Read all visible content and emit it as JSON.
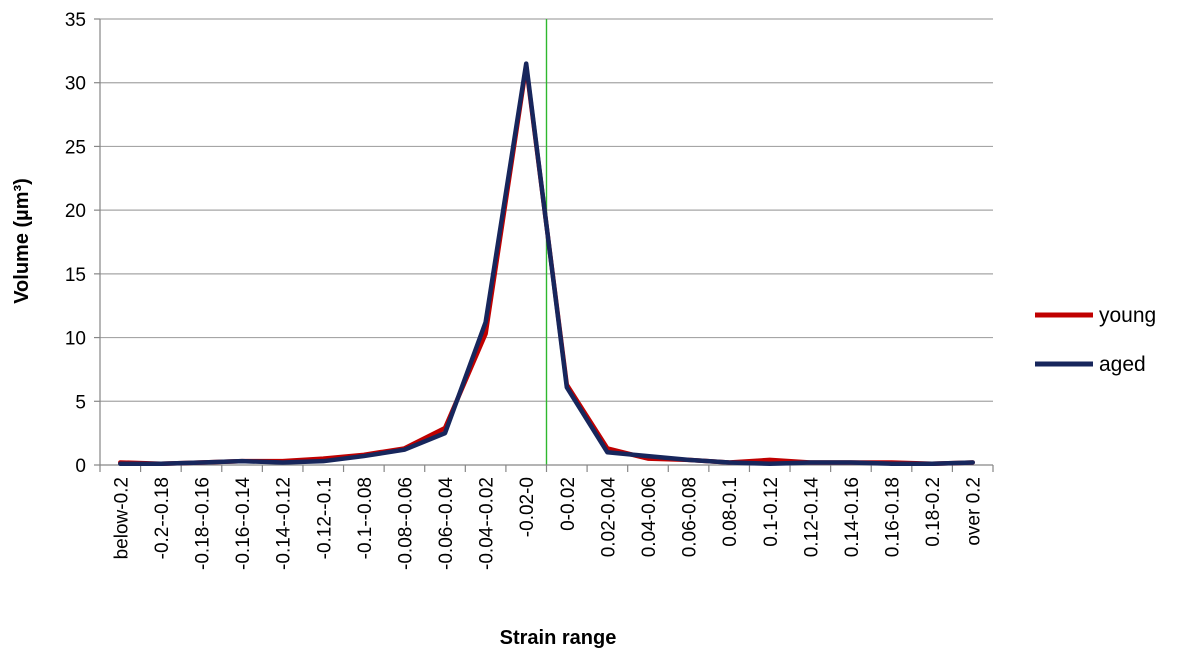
{
  "chart_data": {
    "type": "line",
    "xlabel": "Strain range",
    "ylabel": "Volume (µm³)",
    "ylim": [
      0,
      35
    ],
    "yticks": [
      0,
      5,
      10,
      15,
      20,
      25,
      30,
      35
    ],
    "grid": "horizontal",
    "legend_position": "right",
    "categories": [
      "below-0.2",
      "-0.2--0.18",
      "-0.18--0.16",
      "-0.16--0.14",
      "-0.14--0.12",
      "-0.12--0.1",
      "-0.1--0.08",
      "-0.08--0.06",
      "-0.06--0.04",
      "-0.04--0.02",
      "-0.02-0",
      "0-0.02",
      "0.02-0.04",
      "0.04-0.06",
      "0.06-0.08",
      "0.08-0.1",
      "0.1-0.12",
      "0.12-0.14",
      "0.14-0.16",
      "0.16-0.18",
      "0.18-0.2",
      "over 0.2"
    ],
    "zero_line_after_category": "-0.02-0",
    "zero_line_color": "#2eb82e",
    "series": [
      {
        "name": "young",
        "color": "#c00000",
        "values": [
          0.2,
          0.1,
          0.2,
          0.3,
          0.3,
          0.5,
          0.8,
          1.3,
          2.9,
          10.3,
          31.3,
          6.3,
          1.3,
          0.5,
          0.4,
          0.2,
          0.4,
          0.2,
          0.2,
          0.2,
          0.1,
          0.2
        ]
      },
      {
        "name": "aged",
        "color": "#17265c",
        "values": [
          0.1,
          0.1,
          0.2,
          0.3,
          0.2,
          0.3,
          0.7,
          1.2,
          2.5,
          11.2,
          31.5,
          6.1,
          1.0,
          0.7,
          0.4,
          0.2,
          0.1,
          0.2,
          0.2,
          0.1,
          0.1,
          0.2
        ]
      }
    ]
  }
}
